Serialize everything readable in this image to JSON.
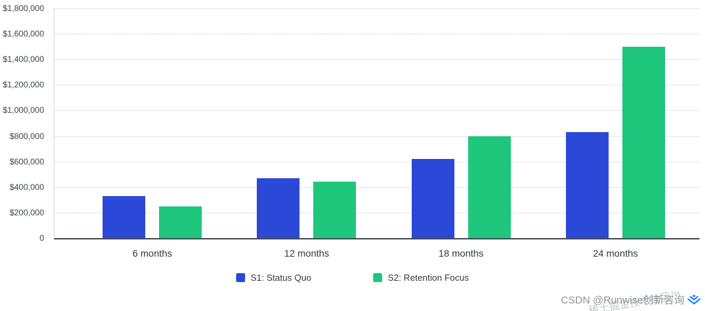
{
  "chart_data": {
    "type": "bar",
    "title": "",
    "xlabel": "",
    "ylabel": "",
    "categories": [
      "6 months",
      "12 months",
      "18 months",
      "24 months"
    ],
    "series": [
      {
        "name": "S1: Status Quo",
        "color": "#2b49d6",
        "values": [
          330000,
          470000,
          620000,
          830000
        ]
      },
      {
        "name": "S2: Retention Focus",
        "color": "#1fc77d",
        "values": [
          250000,
          440000,
          800000,
          1500000
        ]
      }
    ],
    "ylim": [
      0,
      1800000
    ],
    "ytick_step": 200000,
    "ytick_labels": [
      "0",
      "$200,000",
      "$400,000",
      "$600,000",
      "$800,000",
      "$1,000,000",
      "$1,200,000",
      "$1,400,000",
      "$1,600,000",
      "$1,800,000"
    ],
    "grid": "dotted-horizontal",
    "legend_position": "bottom-center"
  },
  "legend": {
    "items": [
      {
        "label": "S1: Status Quo",
        "color": "#2b49d6"
      },
      {
        "label": "S2: Retention Focus",
        "color": "#1fc77d"
      }
    ]
  },
  "watermark": {
    "main": "CSDN @Runwise创新咨询",
    "diagonal": "稀土掘金技术社区™",
    "logo": "juejin-logo",
    "logo_color": "#1e80ff"
  }
}
